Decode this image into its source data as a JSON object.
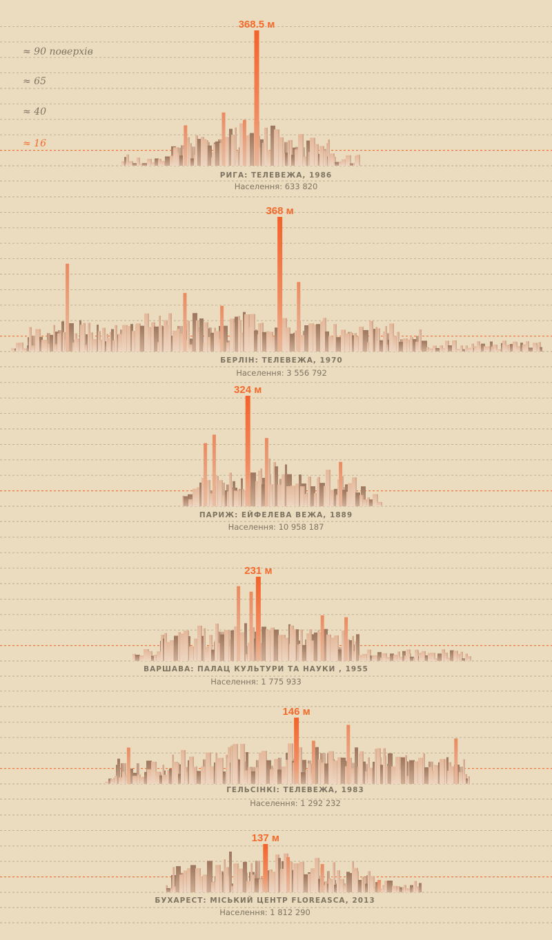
{
  "colors": {
    "background": "#ecdcbf",
    "grid": "#a8987e",
    "accent": "#f26a2c",
    "text": "#7e7463",
    "building_light": "#e6c1a4",
    "building_dark": "#a27e66"
  },
  "chart_data": {
    "type": "bar",
    "unit": "м",
    "floor_labels": [
      "≈ 90 поверхів",
      "≈ 65",
      "≈ 40",
      "≈ 16"
    ],
    "floor_values": [
      90,
      65,
      40,
      16
    ],
    "panels": [
      {
        "title": "РИГА: ТЕЛЕВЕЖА, 1986",
        "population": "Населення: 633 820",
        "peak_label": "368.5 м",
        "peak": {
          "x": 0.465,
          "height": 368.5
        },
        "extent": [
          0.22,
          0.65
        ],
        "dense": [
          0.31,
          0.6
        ],
        "scale": 1.0,
        "seed": 11,
        "towers": [
          {
            "x": 0.336,
            "height": 110
          },
          {
            "x": 0.405,
            "height": 145
          },
          {
            "x": 0.443,
            "height": 125
          }
        ]
      },
      {
        "title": "БЕРЛІН: ТЕЛЕВЕЖА, 1970",
        "population": "Населення: 3 556 792",
        "peak_label": "368 м",
        "peak": {
          "x": 0.507,
          "height": 368
        },
        "extent": [
          0.02,
          0.98
        ],
        "dense": [
          0.05,
          0.76
        ],
        "scale": 0.95,
        "seed": 23,
        "towers": [
          {
            "x": 0.122,
            "height": 240
          },
          {
            "x": 0.335,
            "height": 160
          },
          {
            "x": 0.541,
            "height": 190
          },
          {
            "x": 0.402,
            "height": 125
          }
        ]
      },
      {
        "title": "ПАРИЖ: ЕЙФЕЛЕВА ВЕЖА, 1889",
        "population": "Населення: 10 958 187",
        "peak_label": "324 м",
        "peak": {
          "x": 0.449,
          "height": 324
        },
        "extent": [
          0.33,
          0.69
        ],
        "dense": [
          0.34,
          0.66
        ],
        "scale": 1.05,
        "seed": 37,
        "towers": [
          {
            "x": 0.388,
            "height": 210
          },
          {
            "x": 0.483,
            "height": 200
          },
          {
            "x": 0.372,
            "height": 185
          },
          {
            "x": 0.617,
            "height": 130
          }
        ]
      },
      {
        "title": "ВАРШАВА: ПАЛАЦ КУЛЬТУРИ ТА НАУКИ , 1955",
        "population": "Населення: 1 775 933",
        "peak_label": "231 м",
        "peak": {
          "x": 0.468,
          "height": 231
        },
        "extent": [
          0.24,
          0.85
        ],
        "dense": [
          0.29,
          0.65
        ],
        "scale": 1.0,
        "seed": 51,
        "towers": [
          {
            "x": 0.432,
            "height": 205
          },
          {
            "x": 0.455,
            "height": 190
          },
          {
            "x": 0.584,
            "height": 125
          },
          {
            "x": 0.627,
            "height": 120
          }
        ]
      },
      {
        "title": "ГЕЛЬСІНКІ: ТЕЛЕВЕЖА, 1983",
        "population": "Населення: 1 292 232",
        "peak_label": "146 м",
        "peak": {
          "x": 0.537,
          "height": 146
        },
        "extent": [
          0.19,
          0.85
        ],
        "dense": [
          0.21,
          0.84
        ],
        "scale": 1.0,
        "seed": 67,
        "towers": [
          {
            "x": 0.631,
            "height": 130
          },
          {
            "x": 0.826,
            "height": 100
          },
          {
            "x": 0.568,
            "height": 95
          },
          {
            "x": 0.233,
            "height": 80
          }
        ]
      },
      {
        "title": "БУХАРЕСТ: МІСЬКИЙ ЦЕНТР FLOREASCA, 2013",
        "population": "Населення: 1 812 290",
        "peak_label": "137 м",
        "peak": {
          "x": 0.481,
          "height": 137
        },
        "extent": [
          0.3,
          0.76
        ],
        "dense": [
          0.31,
          0.67
        ],
        "scale": 1.0,
        "seed": 83,
        "towers": [
          {
            "x": 0.522,
            "height": 100
          },
          {
            "x": 0.584,
            "height": 80
          },
          {
            "x": 0.687,
            "height": 35
          }
        ]
      }
    ]
  }
}
